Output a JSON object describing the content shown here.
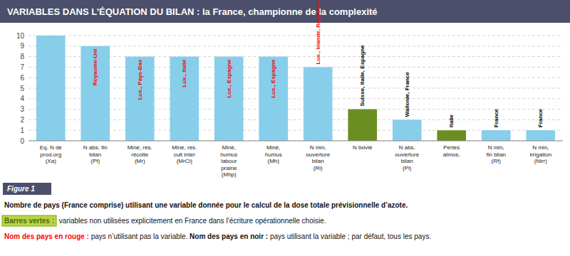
{
  "chart_data": {
    "type": "bar",
    "title": "VARIABLES DANS L’ÉQUATION DU BILAN : la France, championne de la complexité",
    "categories": [
      "Eq. N de\nprod.org\n(Xa)",
      "N abs. fin\nbilan\n(Pf)",
      "Miné, rés.\nrécolte\n(Mr)",
      "Miné, rés.\ncult inter\n(MrCi)",
      "Miné,\nhumus\nlabour\nprairie\n(Mhp)",
      "Miné,\nhumus\n(Mh)",
      "N min,\nouverture\nbilan\n(Ri)",
      "N lixivié",
      "N abs.\nouverture\nbilan\n(Pi)",
      "Pertes\natmos.\n",
      "N min,\nfin bilan\n(Rf)",
      "N min,\nirrigation\n(Nirr)"
    ],
    "values": [
      10,
      9,
      8,
      8,
      8,
      8,
      7,
      3,
      2,
      1,
      1,
      1
    ],
    "colors": [
      "#87CEEB",
      "#87CEEB",
      "#87CEEB",
      "#87CEEB",
      "#87CEEB",
      "#87CEEB",
      "#87CEEB",
      "#6B8E23",
      "#87CEEB",
      "#6B8E23",
      "#87CEEB",
      "#87CEEB"
    ],
    "ylim": [
      0,
      10
    ],
    "yticks": [
      0,
      1,
      2,
      3,
      4,
      5,
      6,
      7,
      8,
      9,
      10
    ],
    "grid": true,
    "annotations": [
      null,
      {
        "text": "Royaume-Uni",
        "color": "red"
      },
      {
        "text": "Lux., Pays-Bas",
        "color": "red"
      },
      {
        "text": "Lux., Italie",
        "color": "red"
      },
      {
        "text": "Lux., Espagne",
        "color": "red"
      },
      {
        "text": "Lux., Espagne",
        "color": "red"
      },
      {
        "text": "Lux., Irlande, Royaume-Uni",
        "color": "red"
      },
      {
        "text": "Suisse, Italie, Espagne",
        "color": "black"
      },
      {
        "text": "Wallonie, France",
        "color": "black"
      },
      {
        "text": "Italie",
        "color": "black"
      },
      {
        "text": "France",
        "color": "black"
      },
      {
        "text": "France",
        "color": "black"
      }
    ],
    "figure_label": "Figure 1",
    "caption": [
      [
        {
          "text": "Nombre de pays (France comprise) utilisant une variable donnée pour le calcul de la dose totale prévisionnelle d’azote.",
          "bold": true
        }
      ],
      [
        {
          "text": "Barres vertes :",
          "bold": true,
          "color": "#4a7000",
          "box": "#b8d44a"
        },
        {
          "text": " variables non utilisées explicitement en France dans l’écriture opérationnelle choisie."
        }
      ],
      [
        {
          "text": "Nom des pays en rouge :",
          "bold": true,
          "color": "red"
        },
        {
          "text": " pays n’utilisant pas la variable. "
        },
        {
          "text": "Nom des pays en noir :",
          "bold": true
        },
        {
          "text": " pays utilisant la variable ; par défaut, tous les pays."
        }
      ]
    ]
  }
}
